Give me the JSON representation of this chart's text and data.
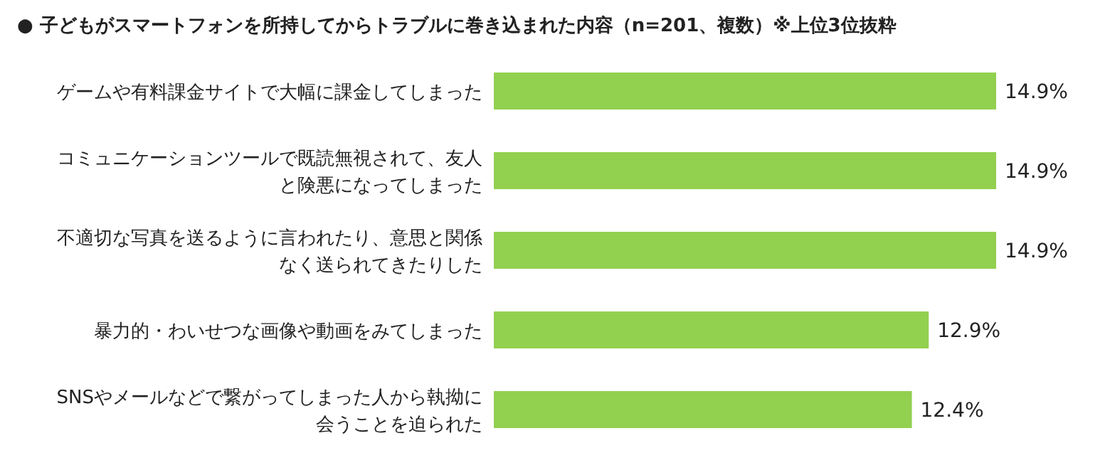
{
  "chart_data": {
    "type": "bar",
    "orientation": "horizontal",
    "title": "● 子どもがスマートフォンを所持してからトラブルに巻き込まれた内容（n=201、複数）※上位3位抜粋",
    "categories": [
      "ゲームや有料課金サイトで大幅に課金してしまった",
      "コミュニケーションツールで既読無視されて、友人と険悪になってしまった",
      "不適切な写真を送るように言われたり、意思と関係なく送られてきたりした",
      "暴力的・わいせつな画像や動画をみてしまった",
      "SNSやメールなどで繋がってしまった人から執拗に会うことを迫られた"
    ],
    "values": [
      14.9,
      14.9,
      14.9,
      12.9,
      12.4
    ],
    "value_labels": [
      "14.9%",
      "14.9%",
      "14.9%",
      "12.9%",
      "12.4%"
    ],
    "color": "#92d050",
    "xlim": [
      0,
      14.9
    ]
  }
}
